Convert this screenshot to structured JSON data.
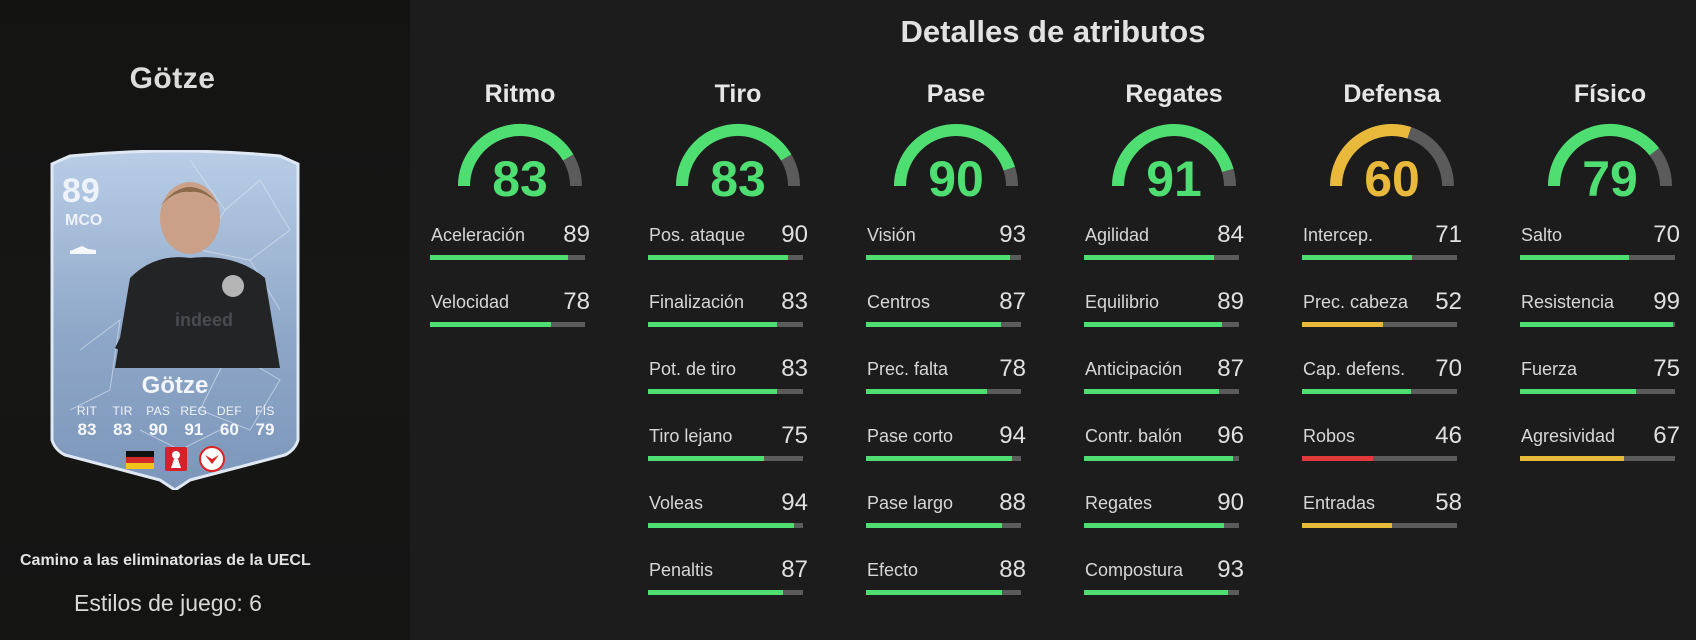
{
  "player": {
    "name": "Götze",
    "card": {
      "rating": "89",
      "position": "MCO",
      "name": "Götze",
      "stats": [
        {
          "label": "RIT",
          "value": "83"
        },
        {
          "label": "TIR",
          "value": "83"
        },
        {
          "label": "PAS",
          "value": "90"
        },
        {
          "label": "REG",
          "value": "91"
        },
        {
          "label": "DEF",
          "value": "60"
        },
        {
          "label": "FÍS",
          "value": "79"
        }
      ]
    },
    "promo": "Camino a las eliminatorias de la UECL",
    "playstyles": "Estilos de juego: 6"
  },
  "title": "Detalles de atributos",
  "colors": {
    "green": "#4ede72",
    "yellow": "#e9b93c",
    "red": "#e23a3a",
    "track": "#5b5b5b"
  },
  "categories": [
    {
      "name": "Ritmo",
      "value": 83,
      "attrs": [
        {
          "label": "Aceleración",
          "value": 89
        },
        {
          "label": "Velocidad",
          "value": 78
        }
      ]
    },
    {
      "name": "Tiro",
      "value": 83,
      "attrs": [
        {
          "label": "Pos. ataque",
          "value": 90
        },
        {
          "label": "Finalización",
          "value": 83
        },
        {
          "label": "Pot. de tiro",
          "value": 83
        },
        {
          "label": "Tiro lejano",
          "value": 75
        },
        {
          "label": "Voleas",
          "value": 94
        },
        {
          "label": "Penaltis",
          "value": 87
        }
      ]
    },
    {
      "name": "Pase",
      "value": 90,
      "attrs": [
        {
          "label": "Visión",
          "value": 93
        },
        {
          "label": "Centros",
          "value": 87
        },
        {
          "label": "Prec. falta",
          "value": 78
        },
        {
          "label": "Pase corto",
          "value": 94
        },
        {
          "label": "Pase largo",
          "value": 88
        },
        {
          "label": "Efecto",
          "value": 88
        }
      ]
    },
    {
      "name": "Regates",
      "value": 91,
      "attrs": [
        {
          "label": "Agilidad",
          "value": 84
        },
        {
          "label": "Equilibrio",
          "value": 89
        },
        {
          "label": "Anticipación",
          "value": 87
        },
        {
          "label": "Contr. balón",
          "value": 96
        },
        {
          "label": "Regates",
          "value": 90
        },
        {
          "label": "Compostura",
          "value": 93
        }
      ]
    },
    {
      "name": "Defensa",
      "value": 60,
      "attrs": [
        {
          "label": "Intercep.",
          "value": 71
        },
        {
          "label": "Prec. cabeza",
          "value": 52
        },
        {
          "label": "Cap. defens.",
          "value": 70
        },
        {
          "label": "Robos",
          "value": 46
        },
        {
          "label": "Entradas",
          "value": 58
        }
      ]
    },
    {
      "name": "Físico",
      "value": 79,
      "attrs": [
        {
          "label": "Salto",
          "value": 70
        },
        {
          "label": "Resistencia",
          "value": 99
        },
        {
          "label": "Fuerza",
          "value": 75
        },
        {
          "label": "Agresividad",
          "value": 67
        }
      ]
    }
  ]
}
